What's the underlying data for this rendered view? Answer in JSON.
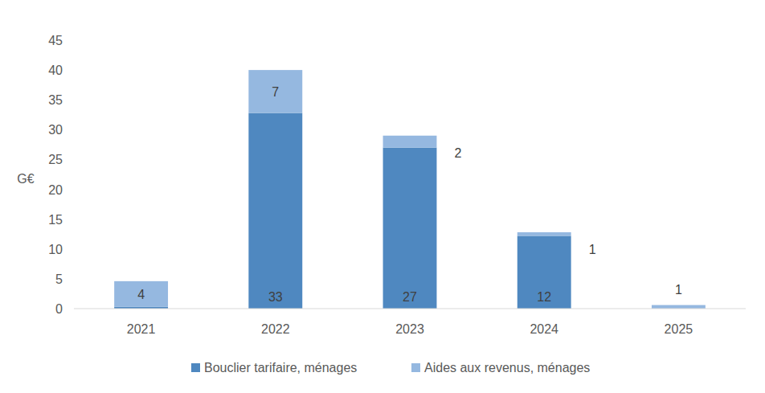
{
  "chart_data": {
    "type": "bar",
    "stacked": true,
    "y_label": "G€",
    "categories": [
      "2021",
      "2022",
      "2023",
      "2024",
      "2025"
    ],
    "ylim": [
      0,
      45
    ],
    "yticks": [
      0,
      5,
      10,
      15,
      20,
      25,
      30,
      35,
      40,
      45
    ],
    "grid": false,
    "legend": "bottom",
    "data_labels": true,
    "series": [
      {
        "name": "Bouclier tarifaire, ménages",
        "color": "#4f88c0",
        "values": [
          0.3,
          32.8,
          27,
          12.2,
          0
        ],
        "value_labels": [
          null,
          "33",
          "27",
          "12",
          null
        ]
      },
      {
        "name": "Aides aux revenus, ménages",
        "color": "#95b8e0",
        "values": [
          4.3,
          7.2,
          2,
          0.6,
          0.6
        ],
        "value_labels": [
          "4",
          "7",
          "2",
          "1",
          "1"
        ]
      }
    ]
  }
}
